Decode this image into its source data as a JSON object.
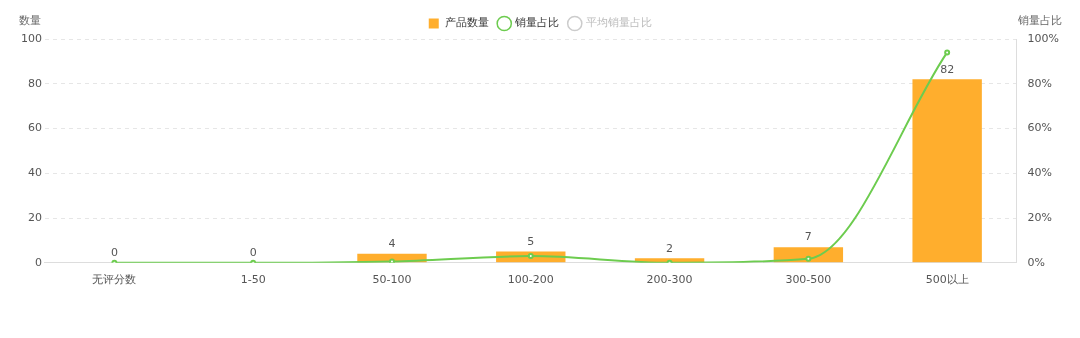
{
  "chart_data": {
    "type": "bar",
    "categories": [
      "无评分数",
      "1-50",
      "50-100",
      "100-200",
      "200-300",
      "300-500",
      "500以上"
    ],
    "series": [
      {
        "name": "产品数量",
        "color": "#ffae2d",
        "values": [
          0,
          0,
          4,
          5,
          2,
          7,
          82
        ],
        "value_labels": [
          "0",
          "0",
          "4",
          "5",
          "2",
          "7",
          "82"
        ]
      },
      {
        "name": "销量占比",
        "type": "line",
        "axis": "y2",
        "color": "#6dcc4f",
        "values": [
          0,
          0,
          0.6,
          3,
          0,
          1.8,
          94
        ]
      },
      {
        "name": "平均销量占比",
        "type": "line",
        "axis": "y2",
        "color": "#cccccc",
        "values": [
          null,
          null,
          null,
          null,
          null,
          null,
          null
        ]
      }
    ],
    "ylabel": "数量",
    "y2label": "销量占比",
    "ylim": [
      0,
      100
    ],
    "yticks": [
      0,
      20,
      40,
      60,
      80,
      100
    ],
    "y2lim": [
      0,
      100
    ],
    "y2ticks": [
      {
        "value": 0,
        "label": "0%"
      },
      {
        "value": 20,
        "label": "20%"
      },
      {
        "value": 40,
        "label": "40%"
      },
      {
        "value": 60,
        "label": "60%"
      },
      {
        "value": 80,
        "label": "80%"
      },
      {
        "value": 100,
        "label": "100%"
      }
    ],
    "grid": "y",
    "legend": "top",
    "marker": "circle"
  }
}
